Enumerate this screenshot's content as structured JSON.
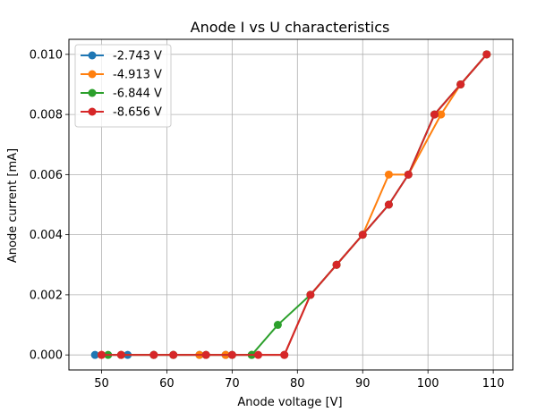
{
  "chart_data": {
    "type": "line",
    "title": "Anode I vs U characteristics",
    "xlabel": "Anode voltage [V]",
    "ylabel": "Anode current [mA]",
    "xlim": [
      45.0,
      113.0
    ],
    "ylim": [
      -0.0005,
      0.0105
    ],
    "xticks": [
      50,
      60,
      70,
      80,
      90,
      100,
      110
    ],
    "xtick_labels": [
      "50",
      "60",
      "70",
      "80",
      "90",
      "100",
      "110"
    ],
    "yticks": [
      0.0,
      0.002,
      0.004,
      0.006,
      0.008,
      0.01
    ],
    "ytick_labels": [
      "0.000",
      "0.002",
      "0.004",
      "0.006",
      "0.008",
      "0.010"
    ],
    "grid": true,
    "legend_position": "top-left",
    "marker": "circle",
    "series": [
      {
        "name": "-2.743 V",
        "color": "#1f77b4",
        "x": [
          49,
          54,
          58,
          61,
          65,
          69,
          73,
          78,
          82,
          86,
          90,
          94,
          97,
          101,
          105,
          109
        ],
        "y": [
          0.0,
          0.0,
          0.0,
          0.0,
          0.0,
          0.0,
          0.0,
          0.0,
          0.002,
          0.003,
          0.004,
          0.005,
          0.006,
          0.008,
          0.009,
          0.01
        ]
      },
      {
        "name": "-4.913 V",
        "color": "#ff7f0e",
        "x": [
          50,
          53,
          58,
          61,
          65,
          69,
          73,
          78,
          82,
          86,
          90,
          94,
          97,
          102,
          105,
          109
        ],
        "y": [
          0.0,
          0.0,
          0.0,
          0.0,
          0.0,
          0.0,
          0.0,
          0.0,
          0.002,
          0.003,
          0.004,
          0.006,
          0.006,
          0.008,
          0.009,
          0.01
        ]
      },
      {
        "name": "-6.844 V",
        "color": "#2ca02c",
        "x": [
          51,
          53,
          58,
          61,
          66,
          70,
          73,
          77,
          82,
          86,
          90,
          94,
          97,
          101,
          105,
          109
        ],
        "y": [
          0.0,
          0.0,
          0.0,
          0.0,
          0.0,
          0.0,
          0.0,
          0.001,
          0.002,
          0.003,
          0.004,
          0.005,
          0.006,
          0.008,
          0.009,
          0.01
        ]
      },
      {
        "name": "-8.656 V",
        "color": "#d62728",
        "x": [
          50,
          53,
          58,
          61,
          66,
          70,
          74,
          78,
          82,
          86,
          90,
          94,
          97,
          101,
          105,
          109
        ],
        "y": [
          0.0,
          0.0,
          0.0,
          0.0,
          0.0,
          0.0,
          0.0,
          0.0,
          0.002,
          0.003,
          0.004,
          0.005,
          0.006,
          0.008,
          0.009,
          0.01
        ]
      }
    ]
  }
}
